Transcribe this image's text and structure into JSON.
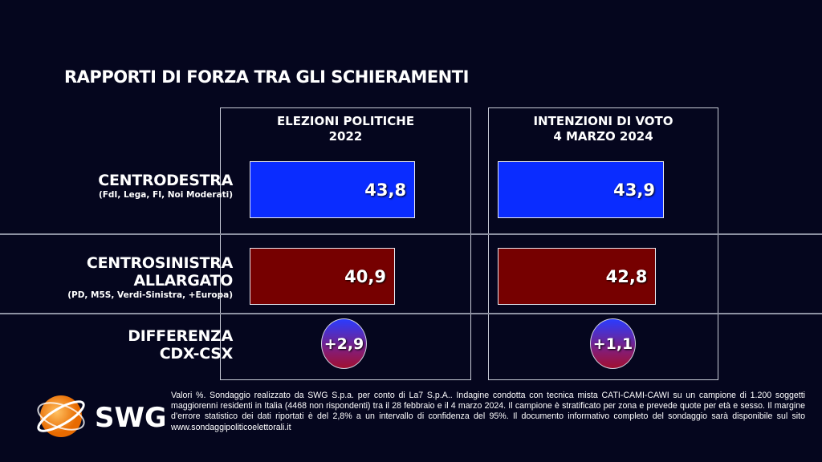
{
  "title": "RAPPORTI DI FORZA TRA GLI SCHIERAMENTI",
  "chart_data": {
    "type": "bar",
    "categories": [
      "CENTRODESTRA",
      "CENTROSINISTRA ALLARGATO"
    ],
    "series": [
      {
        "name": "ELEZIONI POLITICHE 2022",
        "values": [
          43.8,
          40.9
        ],
        "value_labels": [
          "43,8",
          "40,9"
        ],
        "difference": "+2,9"
      },
      {
        "name": "INTENZIONI DI VOTO 4 MARZO 2024",
        "values": [
          43.9,
          42.8
        ],
        "value_labels": [
          "43,9",
          "42,8"
        ],
        "difference": "+1,1"
      }
    ],
    "colors": {
      "CENTRODESTRA": "#0a2cff",
      "CENTROSINISTRA ALLARGATO": "#760000"
    }
  },
  "columns": [
    {
      "line1": "ELEZIONI POLITICHE",
      "line2": "2022"
    },
    {
      "line1": "INTENZIONI DI VOTO",
      "line2": "4 MARZO 2024"
    }
  ],
  "rows": {
    "cdx": {
      "l1": "CENTRODESTRA",
      "sub": "(FdI, Lega, FI, Noi Moderati)"
    },
    "csx": {
      "l1": "CENTROSINISTRA",
      "l2": "ALLARGATO",
      "sub": "(PD, M5S, Verdi-Sinistra, +Europa)"
    },
    "diff": {
      "l1": "DIFFERENZA",
      "l2": "CDX-CSX"
    }
  },
  "logo": "SWG",
  "note": "Valori %. Sondaggio realizzato da SWG S.p.a. per conto di La7 S.p.A.. Indagine condotta con tecnica mista CATI-CAMI-CAWI su un campione di 1.200 soggetti maggiorenni residenti in Italia (4468 non rispondenti) tra il 28 febbraio e il 4 marzo 2024. Il campione è stratificato per zona e prevede quote per età e sesso. Il margine d’errore statistico dei dati riportati è del 2,8% a un intervallo di confidenza del 95%. Il documento informativo completo del sondaggio sarà disponibile sul sito www.sondaggipoliticoelettorali.it"
}
